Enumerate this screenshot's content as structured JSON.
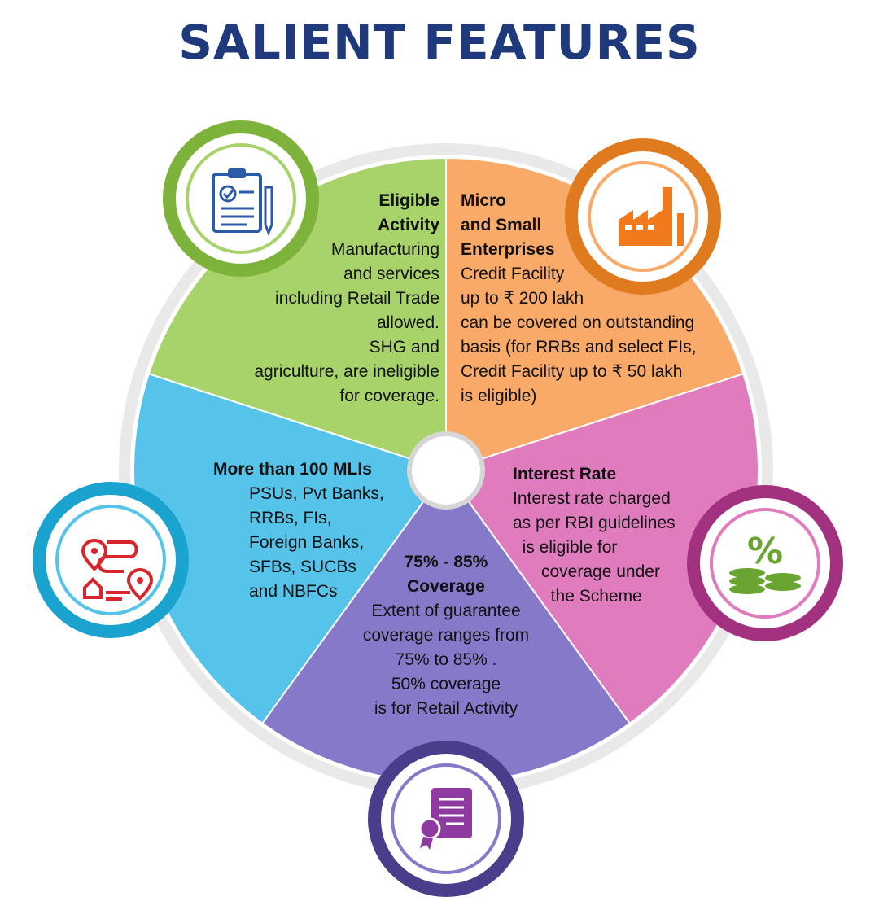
{
  "title": "SALIENT FEATURES",
  "segments": [
    {
      "heading": "Eligible\nActivity",
      "body": "Manufacturing\nand services\nincluding Retail Trade\nallowed.\nSHG and\nagriculture, are ineligible\nfor coverage.",
      "color": "#a8d36b",
      "icon": "clipboard-check-icon"
    },
    {
      "heading": "Micro\nand Small\nEnterprises",
      "body": "Credit Facility\nup to ₹ 200 lakh\ncan be covered on outstanding\nbasis (for RRBs and select FIs,\nCredit Facility up to ₹ 50 lakh\nis eligible)",
      "color": "#f9a968",
      "icon": "factory-icon"
    },
    {
      "heading": "Interest Rate",
      "body": "Interest rate charged\nas per RBI guidelines\n  is eligible for\n      coverage under\n        the Scheme",
      "color": "#e07bbd",
      "icon": "percent-coins-icon"
    },
    {
      "heading": "75% - 85%\nCoverage",
      "body": "Extent of guarantee\ncoverage ranges from\n75% to 85% .\n50% coverage\nis for Retail Activity",
      "color": "#8779c9",
      "icon": "certificate-icon"
    },
    {
      "heading": "More than 100 MLIs",
      "body": "PSUs, Pvt Banks,\nRRBs, FIs,\nForeign Banks,\nSFBs, SUCBs\nand NBFCs",
      "color": "#55c3ea",
      "icon": "route-map-icon"
    }
  ]
}
